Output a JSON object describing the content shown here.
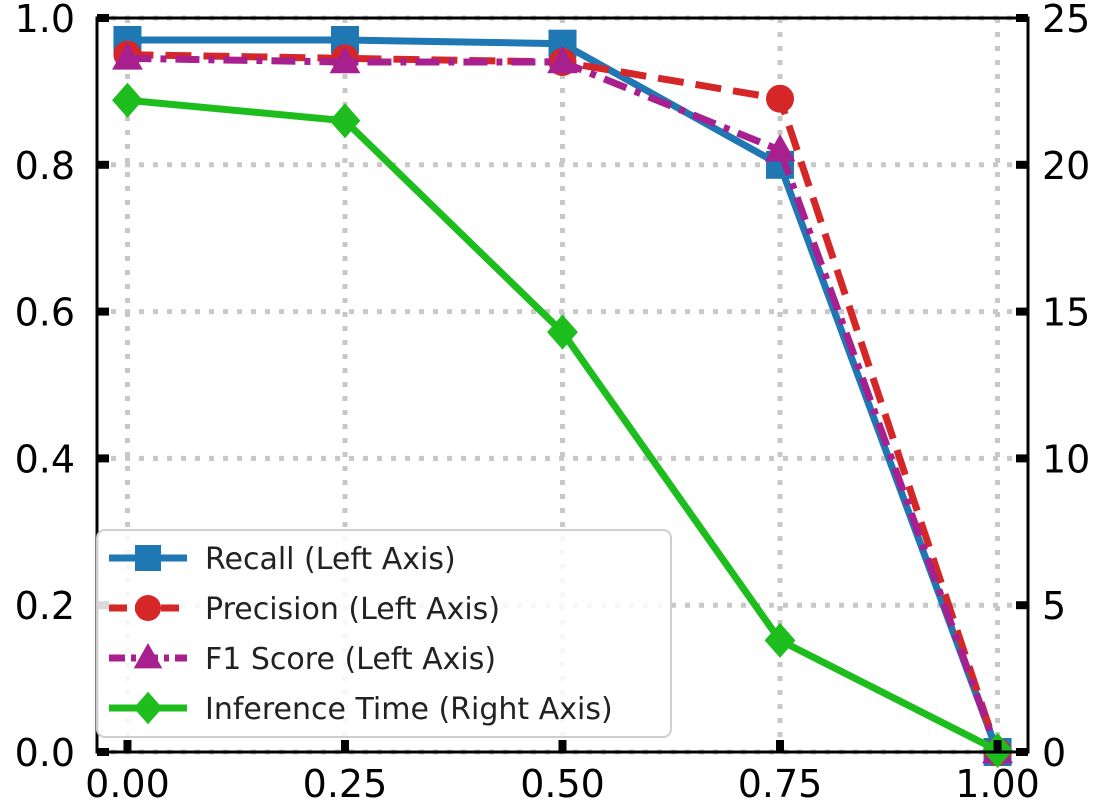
{
  "chart_data": {
    "type": "line",
    "title": "",
    "xlabel": "",
    "ylabel": "",
    "y2label": "",
    "x": [
      0.0,
      0.25,
      0.5,
      0.75,
      1.0
    ],
    "xlim": [
      -0.035,
      1.035
    ],
    "ylim": [
      0.0,
      1.0
    ],
    "y2lim": [
      0,
      25
    ],
    "xticks": [
      "0.00",
      "0.25",
      "0.50",
      "0.75",
      "1.00"
    ],
    "yticks": [
      "0.0",
      "0.2",
      "0.4",
      "0.6",
      "0.8",
      "1.0"
    ],
    "y2ticks": [
      "0",
      "5",
      "10",
      "15",
      "20",
      "25"
    ],
    "grid": true,
    "legend_position": "bottom-left",
    "series": [
      {
        "name": "Recall (Left Axis)",
        "axis": "left",
        "values": [
          0.97,
          0.97,
          0.965,
          0.8,
          0.0
        ],
        "color": "#1f77b4",
        "marker": "square",
        "linestyle": "solid"
      },
      {
        "name": "Precision (Left Axis)",
        "axis": "left",
        "values": [
          0.95,
          0.945,
          0.94,
          0.89,
          0.0
        ],
        "color": "#d62728",
        "marker": "circle",
        "linestyle": "dashed"
      },
      {
        "name": "F1 Score (Left Axis)",
        "axis": "left",
        "values": [
          0.945,
          0.94,
          0.94,
          0.82,
          0.0
        ],
        "color": "#a8208f",
        "marker": "triangle",
        "linestyle": "dashdot"
      },
      {
        "name": "Inference Time (Right Axis)",
        "axis": "right",
        "values": [
          22.2,
          21.5,
          14.3,
          3.8,
          0.05
        ],
        "color": "#1ebd1e",
        "marker": "diamond",
        "linestyle": "solid"
      }
    ]
  }
}
